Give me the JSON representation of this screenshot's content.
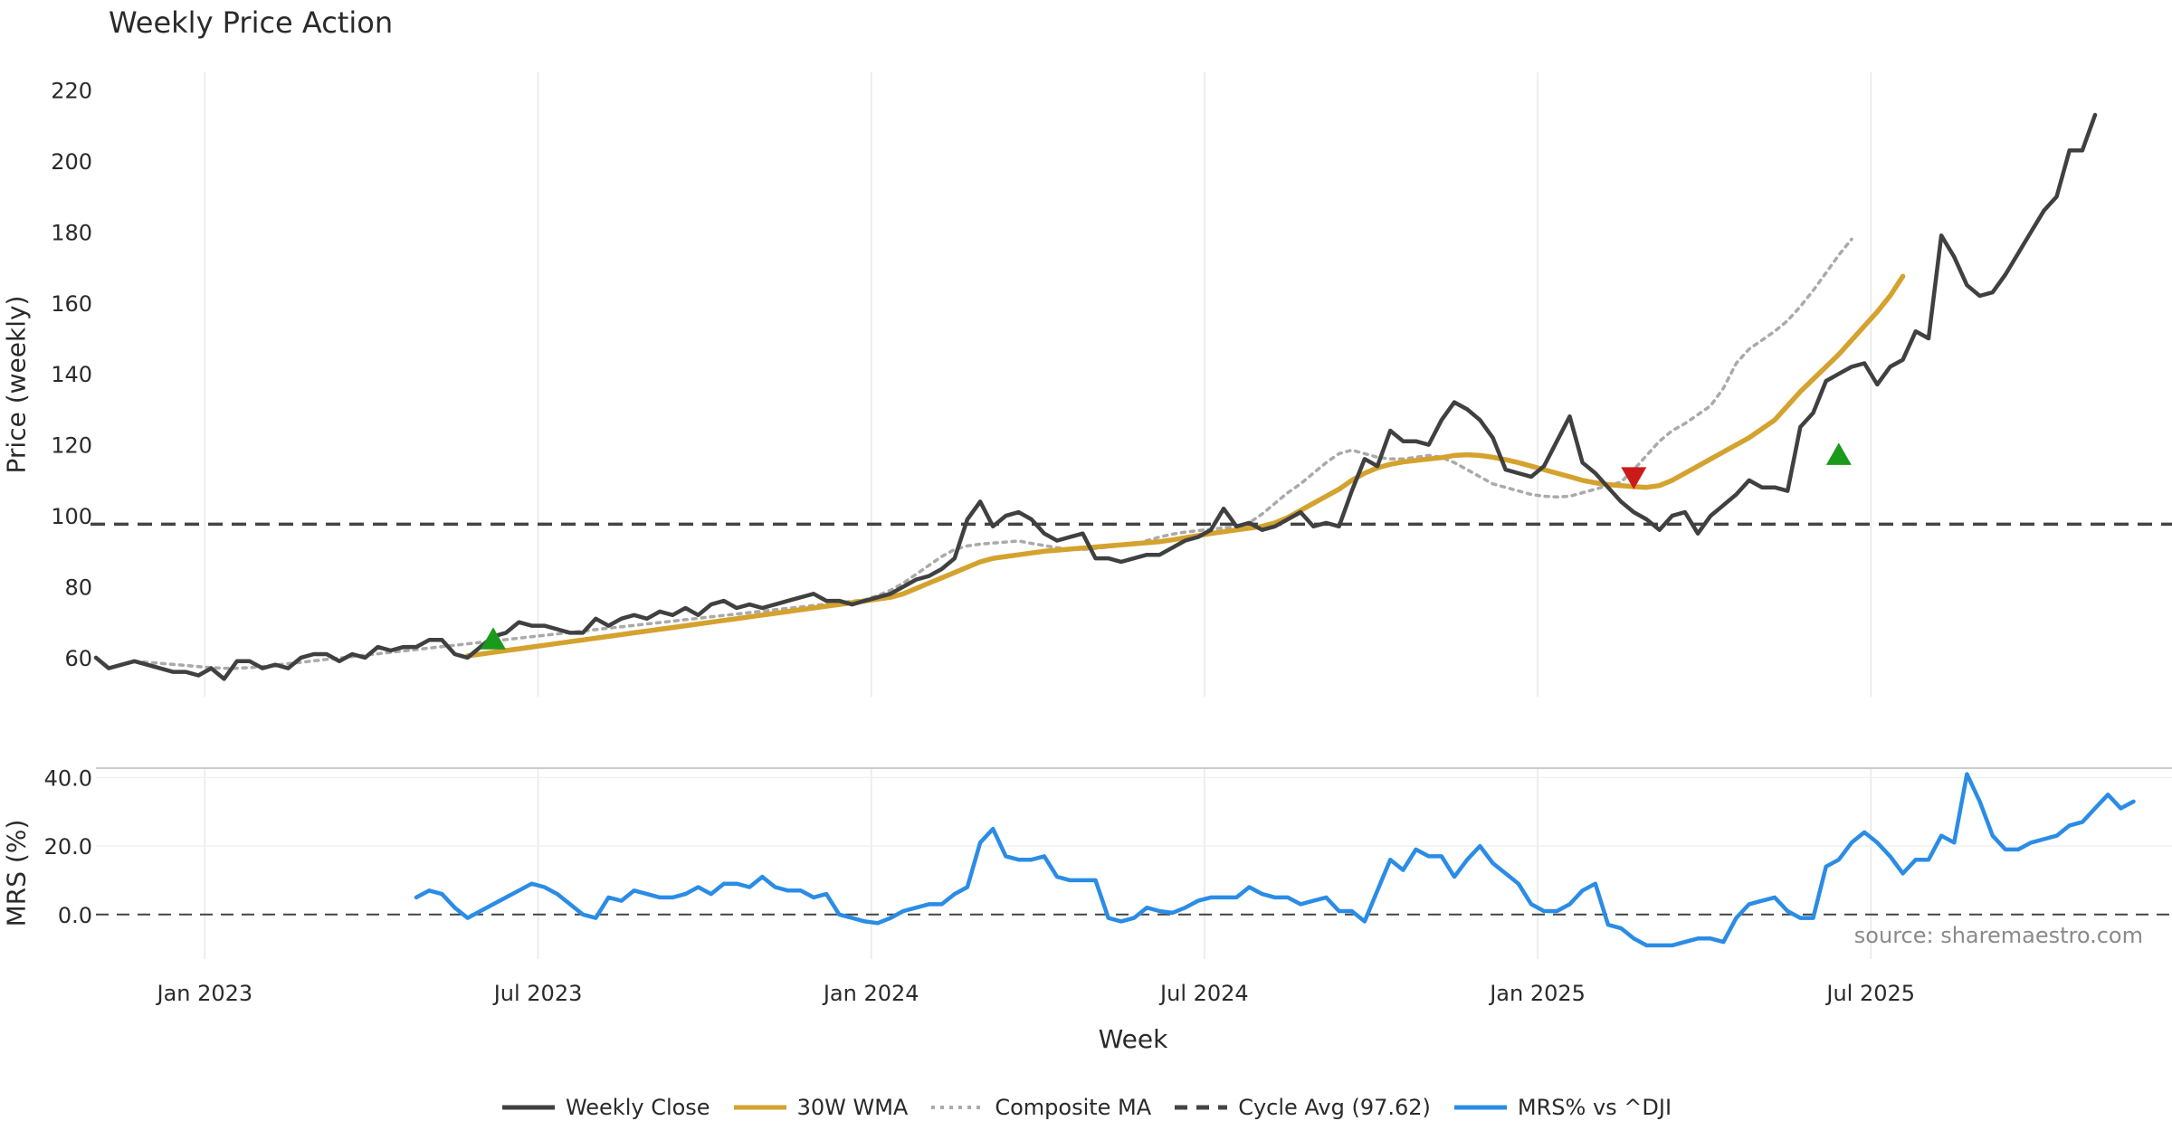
{
  "chart_data": {
    "type": "line",
    "title": "Weekly Price Action",
    "watermark": "source: sharemaestro.com",
    "xlabel": "Week",
    "x_ticks": [
      "Jan 2023",
      "Jul 2023",
      "Jan 2024",
      "Jul 2024",
      "Jan 2025",
      "Jul 2025"
    ],
    "x_range_weeks": [
      0,
      162
    ],
    "price_panel": {
      "ylabel": "Price (weekly)",
      "ylim": [
        49,
        225
      ],
      "yticks": [
        "60",
        "80",
        "100",
        "120",
        "140",
        "160",
        "180",
        "200",
        "220"
      ],
      "ytick_values": [
        60,
        80,
        100,
        120,
        140,
        160,
        180,
        200,
        220
      ],
      "cycle_avg": 97.62,
      "weekly_close_start_week": 0,
      "weekly_close": [
        60,
        57,
        58,
        59,
        58,
        57,
        56,
        56,
        55,
        57,
        54,
        59,
        59,
        57,
        58,
        57,
        60,
        61,
        61,
        59,
        61,
        60,
        63,
        62,
        63,
        63,
        65,
        65,
        61,
        60,
        63,
        66,
        67,
        70,
        69,
        69,
        68,
        67,
        67,
        71,
        69,
        71,
        72,
        71,
        73,
        72,
        74,
        72,
        75,
        76,
        74,
        75,
        74,
        75,
        76,
        77,
        78,
        76,
        76,
        75,
        76,
        77,
        78,
        80,
        82,
        83,
        85,
        88,
        99,
        104,
        97,
        100,
        101,
        99,
        95,
        93,
        94,
        95,
        88,
        88,
        87,
        88,
        89,
        89,
        91,
        93,
        94,
        96,
        102,
        97,
        98,
        96,
        97,
        99,
        101,
        97,
        98,
        97,
        107,
        116,
        114,
        124,
        121,
        121,
        120,
        127,
        132,
        130,
        127,
        122,
        113,
        112,
        111,
        114,
        121,
        128,
        115,
        112,
        108,
        104,
        101,
        99,
        96,
        100,
        101,
        95,
        100,
        103,
        106,
        110,
        108,
        108,
        107,
        125,
        129,
        138,
        140,
        142,
        143,
        137,
        142,
        144,
        152,
        150,
        179,
        173,
        165,
        162,
        163,
        168,
        174,
        180,
        186,
        190,
        203,
        203,
        213
      ],
      "wma30_start_week": 29,
      "wma30": [
        60.5,
        61,
        61.5,
        62,
        62.5,
        63,
        63.5,
        64,
        64.5,
        65,
        65.5,
        66,
        66.5,
        67,
        67.5,
        68,
        68.5,
        69,
        69.5,
        70,
        70.5,
        71,
        71.5,
        72,
        72.5,
        73,
        73.5,
        74,
        74.5,
        75,
        75.5,
        76,
        76.5,
        77,
        78,
        79.5,
        81,
        82.5,
        84,
        85.5,
        87,
        88,
        88.5,
        89,
        89.5,
        90,
        90.3,
        90.6,
        90.9,
        91.2,
        91.5,
        91.8,
        92.1,
        92.4,
        92.7,
        93.2,
        93.8,
        94.4,
        95,
        95.5,
        96,
        96.5,
        97,
        98,
        99.5,
        101.5,
        103.5,
        105.5,
        107.5,
        110,
        112,
        113.5,
        114.5,
        115.2,
        115.6,
        116,
        116.4,
        117,
        117.2,
        117,
        116.5,
        115.8,
        115,
        114,
        113,
        112,
        111,
        110,
        109.3,
        108.8,
        108.5,
        108.2,
        108,
        108.5,
        110,
        112,
        114,
        116,
        118,
        120,
        122,
        124.5,
        127,
        131,
        135,
        138.5,
        142,
        145.5,
        149.5,
        153.5,
        157.5,
        162,
        167.5
      ],
      "composite_start_week": 3,
      "composite_ma": [
        59,
        58.7,
        58.4,
        58.1,
        57.8,
        57.5,
        57.2,
        57,
        57,
        57.2,
        57.5,
        57.9,
        58.3,
        58.7,
        59.1,
        59.5,
        59.9,
        60.3,
        60.7,
        61.1,
        61.5,
        61.9,
        62.3,
        62.7,
        63.1,
        63.5,
        63.9,
        64.3,
        64.7,
        65.1,
        65.5,
        65.9,
        66.3,
        66.7,
        67.1,
        67.5,
        67.9,
        68.3,
        68.7,
        69.1,
        69.5,
        69.9,
        70.3,
        70.7,
        71.1,
        71.5,
        71.9,
        72.3,
        72.7,
        73.1,
        73.5,
        73.9,
        74.3,
        74.7,
        75.1,
        75.5,
        75.9,
        76.3,
        77.5,
        79,
        81,
        83.5,
        86,
        88.5,
        90.5,
        91.5,
        92,
        92.3,
        92.6,
        92.9,
        92.2,
        91.6,
        91,
        90.5,
        90.5,
        90.8,
        91.2,
        91.6,
        92,
        93,
        94,
        94.8,
        95.4,
        95.8,
        96.2,
        96.6,
        97,
        98,
        100.5,
        103.5,
        106.5,
        109,
        112,
        115,
        117.5,
        118.5,
        117.5,
        116.5,
        116,
        116,
        116.5,
        117,
        116.5,
        115,
        113,
        111,
        109,
        108,
        107,
        106,
        105.5,
        105.3,
        105.5,
        106.5,
        107.5,
        108.5,
        109.5,
        113,
        117,
        121,
        124,
        126,
        128.5,
        131,
        136,
        143,
        147,
        149.5,
        152,
        155,
        159,
        163.5,
        168.5,
        173.5,
        178
      ],
      "markers": [
        {
          "type": "buy",
          "week": 31,
          "value": 65
        },
        {
          "type": "sell",
          "week": 120,
          "value": 111
        },
        {
          "type": "buy",
          "week": 136,
          "value": 117
        }
      ]
    },
    "mrs_panel": {
      "ylabel": "MRS (%)",
      "ylim": [
        -13,
        43
      ],
      "yticks": [
        "0.0",
        "20.0",
        "40.0"
      ],
      "ytick_values": [
        0,
        20,
        40
      ],
      "zero_line": 0,
      "mrs_start_week": 25,
      "mrs": [
        5,
        7,
        6,
        2,
        -1,
        1,
        3,
        5,
        7,
        9,
        8,
        6,
        3,
        0,
        -1,
        5,
        4,
        7,
        6,
        5,
        5,
        6,
        8,
        6,
        9,
        9,
        8,
        11,
        8,
        7,
        7,
        5,
        6,
        0,
        -1,
        -2,
        -2.5,
        -1,
        1,
        2,
        3,
        3,
        6,
        8,
        21,
        25,
        17,
        16,
        16,
        17,
        11,
        10,
        10,
        10,
        -1,
        -2,
        -1,
        2,
        1,
        0.5,
        2,
        4,
        5,
        5,
        5,
        8,
        6,
        5,
        5,
        3,
        4,
        5,
        1,
        1,
        -2,
        7,
        16,
        13,
        19,
        17,
        17,
        11,
        16,
        20,
        15,
        12,
        9,
        3,
        1,
        1,
        3,
        7,
        9,
        -3,
        -4,
        -7,
        -9,
        -9,
        -9,
        -8,
        -7,
        -7,
        -8,
        -1,
        3,
        4,
        5,
        1,
        -1,
        -1,
        14,
        16,
        21,
        24,
        21,
        17,
        12,
        16,
        16,
        23,
        21,
        41,
        33,
        23,
        19,
        19,
        21,
        22,
        23,
        26,
        27,
        31,
        35,
        31,
        33
      ]
    },
    "legend": [
      {
        "label": "Weekly Close",
        "color": "#404040",
        "style": "solid"
      },
      {
        "label": "30W WMA",
        "color": "#d4a22e",
        "style": "solid"
      },
      {
        "label": "Composite MA",
        "color": "#aaaaaa",
        "style": "dotted"
      },
      {
        "label": "Cycle Avg (97.62)",
        "color": "#444444",
        "style": "dashed"
      },
      {
        "label": "MRS% vs ^DJI",
        "color": "#2b8ce6",
        "style": "solid"
      }
    ],
    "colors": {
      "weekly_close": "#404040",
      "wma30": "#d4a22e",
      "composite_ma": "#aaaaaa",
      "cycle_avg": "#444444",
      "mrs": "#2b8ce6",
      "buy_marker": "#1a9a1a",
      "sell_marker": "#cc1a1a",
      "grid": "#e8e8e8"
    }
  }
}
